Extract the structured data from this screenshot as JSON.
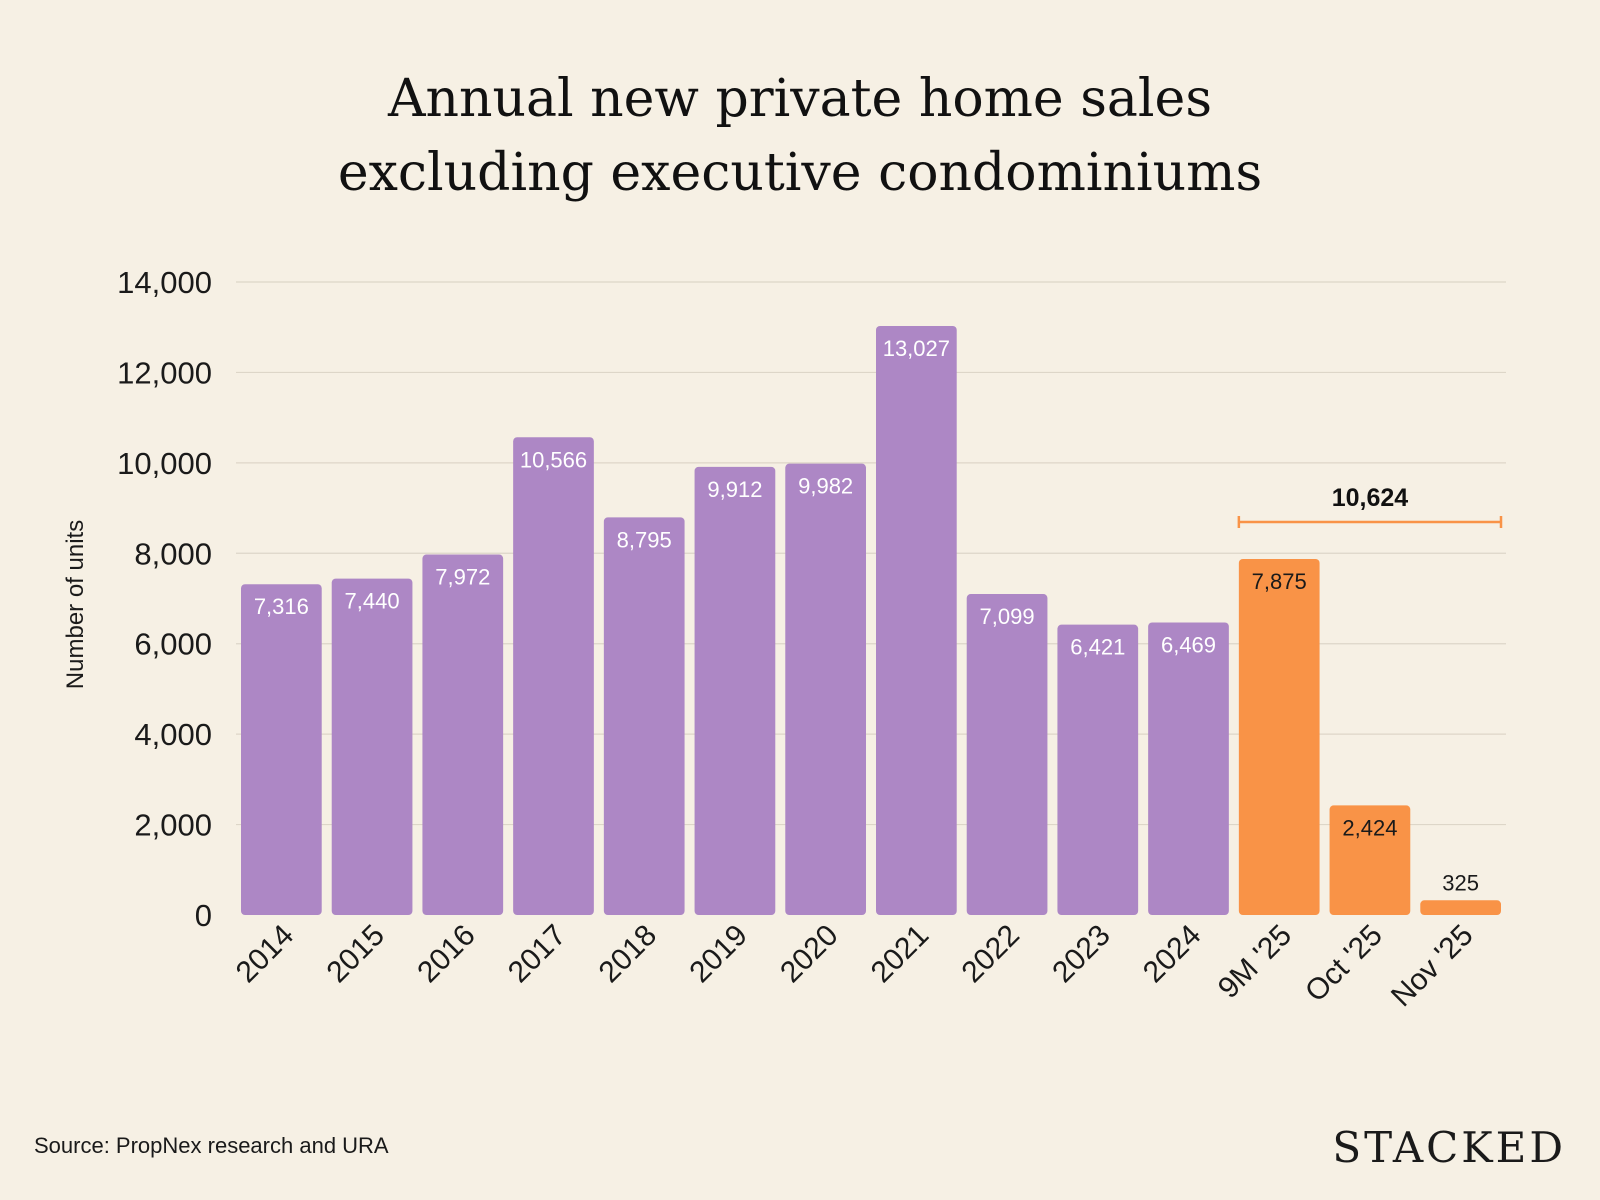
{
  "chart_data": {
    "type": "bar",
    "title": [
      "Annual new private home sales",
      "excluding executive condominiums"
    ],
    "xlabel": "",
    "ylabel": "Number of units",
    "ylim": [
      0,
      14000
    ],
    "yticks": [
      0,
      2000,
      4000,
      6000,
      8000,
      10000,
      12000,
      14000
    ],
    "ytick_labels": [
      "0",
      "2,000",
      "4,000",
      "6,000",
      "8,000",
      "10,000",
      "12,000",
      "14,000"
    ],
    "grid": true,
    "categories": [
      "2014",
      "2015",
      "2016",
      "2017",
      "2018",
      "2019",
      "2020",
      "2021",
      "2022",
      "2023",
      "2024",
      "9M '25",
      "Oct '25",
      "Nov '25"
    ],
    "values": [
      7316,
      7440,
      7972,
      10566,
      8795,
      9912,
      9982,
      13027,
      7099,
      6421,
      6469,
      7875,
      2424,
      325
    ],
    "value_labels": [
      "7,316",
      "7,440",
      "7,972",
      "10,566",
      "8,795",
      "9,912",
      "9,982",
      "13,027",
      "7,099",
      "6,421",
      "6,469",
      "7,875",
      "2,424",
      "325"
    ],
    "highlight_categories": [
      "9M '25",
      "Oct '25",
      "Nov '25"
    ],
    "colors": {
      "base": "#ad87c5",
      "highlight": "#f99347",
      "background": "#f6f0e4"
    },
    "annotation": {
      "text": "10,624",
      "span": [
        "9M '25",
        "Nov '25"
      ]
    }
  },
  "footer": {
    "source": "Source: PropNex research and URA",
    "logo": "STACKED"
  }
}
